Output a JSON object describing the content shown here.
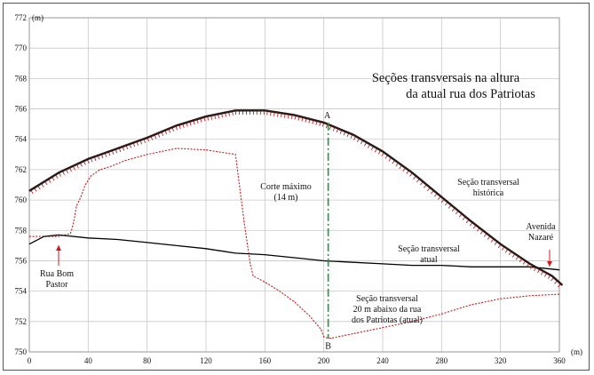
{
  "chart_data": {
    "type": "line",
    "title": "Seções transversais na altura\nda atual rua dos Patriotas",
    "xlabel": "(m)",
    "ylabel": "(m)",
    "xlim": [
      0,
      360
    ],
    "ylim": [
      750,
      772
    ],
    "x_ticks": [
      0,
      40,
      80,
      120,
      160,
      200,
      240,
      280,
      320,
      360
    ],
    "y_ticks": [
      750,
      752,
      754,
      756,
      758,
      760,
      762,
      764,
      766,
      768,
      770,
      772
    ],
    "x_ticks_labels": [
      "0",
      "40",
      "80",
      "120",
      "160",
      "200",
      "240",
      "280",
      "320",
      "360"
    ],
    "y_ticks_labels": [
      "750",
      "752",
      "754",
      "756",
      "758",
      "760",
      "762",
      "764",
      "766",
      "768",
      "770",
      "772"
    ],
    "grid": true,
    "series": [
      {
        "name": "Seção transversal histórica",
        "style": "thick dark line with red hatch",
        "x": [
          0,
          20,
          40,
          60,
          80,
          100,
          120,
          140,
          160,
          180,
          200,
          220,
          240,
          260,
          280,
          300,
          320,
          340,
          355,
          362
        ],
        "y": [
          760.6,
          761.8,
          762.7,
          763.4,
          764.1,
          764.9,
          765.5,
          765.9,
          765.9,
          765.6,
          765.1,
          764.3,
          763.2,
          761.8,
          760.2,
          758.6,
          757.1,
          755.8,
          755.0,
          754.4
        ]
      },
      {
        "name": "Seção transversal atual",
        "style": "solid black line",
        "x": [
          0,
          10,
          20,
          40,
          60,
          80,
          100,
          120,
          140,
          160,
          180,
          200,
          220,
          240,
          260,
          280,
          300,
          320,
          340,
          360
        ],
        "y": [
          757.1,
          757.6,
          757.7,
          757.5,
          757.4,
          757.2,
          757.0,
          756.8,
          756.5,
          756.4,
          756.2,
          756.0,
          755.9,
          755.8,
          755.7,
          755.7,
          755.6,
          755.6,
          755.6,
          755.4
        ]
      },
      {
        "name": "Seção transversal 20 m abaixo da rua dos Patriotas (atual)",
        "style": "dotted red line",
        "x": [
          0,
          20,
          28,
          30,
          32,
          35,
          38,
          42,
          48,
          55,
          65,
          80,
          100,
          120,
          140,
          142,
          146,
          150,
          152,
          160,
          170,
          180,
          190,
          198,
          200,
          203,
          205,
          210,
          215,
          220,
          230,
          240,
          260,
          280,
          300,
          320,
          340,
          360
        ],
        "y": [
          757.6,
          757.6,
          757.8,
          758.5,
          759.6,
          760.2,
          761.0,
          761.6,
          762.0,
          762.2,
          762.6,
          763.0,
          763.4,
          763.3,
          763.0,
          761.5,
          758.5,
          755.8,
          755.0,
          754.6,
          754.0,
          753.3,
          752.4,
          751.5,
          751.0,
          750.9,
          750.9,
          751.0,
          751.1,
          751.2,
          751.4,
          751.6,
          752.0,
          752.5,
          753.1,
          753.5,
          753.7,
          753.8
        ]
      }
    ],
    "cut_line": {
      "x": 203,
      "y_top": 765.1,
      "y_bottom": 750.9,
      "label_top": "A",
      "label_bottom": "B"
    },
    "annotations": [
      {
        "id": "corte",
        "lines": [
          "Corte máximo",
          "(14 m)"
        ]
      },
      {
        "id": "historica",
        "lines": [
          "Seção transversal",
          "histórica"
        ]
      },
      {
        "id": "atual",
        "lines": [
          "Seção transversal",
          "atual"
        ]
      },
      {
        "id": "abaixo",
        "lines": [
          "Seção transversal",
          "20 m abaixo da rua",
          "dos Patriotas (atual)"
        ]
      },
      {
        "id": "rua-bom-pastor",
        "lines": [
          "Rua Bom",
          "Pastor"
        ]
      },
      {
        "id": "avenida-nazare",
        "lines": [
          "Avenida",
          "Nazaré"
        ]
      }
    ],
    "colors": {
      "historic": "#2a1a1a",
      "hatch": "#cc1a1a",
      "atual": "#000000",
      "below": "#d01818",
      "cut": "#1a9a3a",
      "grid": "#c8c8c8",
      "arrow": "#d01818"
    }
  }
}
